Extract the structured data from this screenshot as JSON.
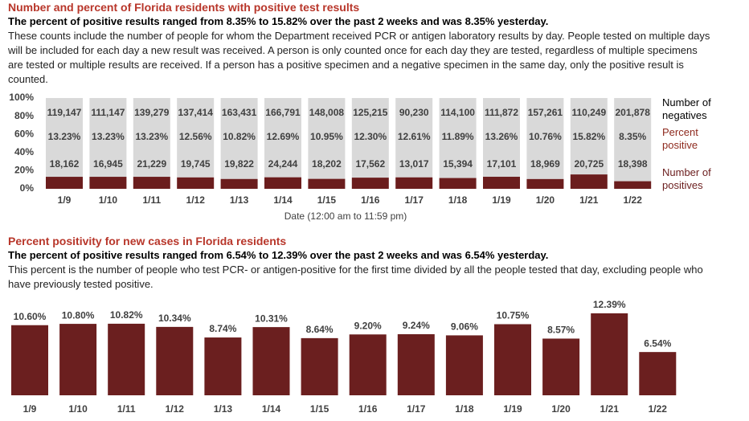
{
  "chart_data": [
    {
      "type": "stacked_percent_bar",
      "title": "Number and percent of Florida residents with positive test results",
      "subtitle": "The percent of positive results ranged from 8.35% to 15.82% over the past 2 weeks and was 8.35% yesterday.",
      "description": "These counts include the number of people for whom the Department received PCR or antigen laboratory results by day. People tested on multiple days will be included for each day a new result was received. A person is only counted once for each day they are tested, regardless of multiple specimens are tested or multiple results are received. If a person has a positive specimen and a negative specimen in the same day, only the positive result is counted.",
      "xlabel": "Date (12:00 am to 11:59 pm)",
      "categories": [
        "1/9",
        "1/10",
        "1/11",
        "1/12",
        "1/13",
        "1/14",
        "1/15",
        "1/16",
        "1/17",
        "1/18",
        "1/19",
        "1/20",
        "1/21",
        "1/22"
      ],
      "series": [
        {
          "name": "Number of negatives",
          "color": "#d9d9d9",
          "values": [
            119147,
            111147,
            139279,
            137414,
            163431,
            166791,
            148008,
            125215,
            90230,
            114100,
            111872,
            157261,
            110249,
            201878
          ],
          "value_labels": [
            "119,147",
            "111,147",
            "139,279",
            "137,414",
            "163,431",
            "166,791",
            "148,008",
            "125,215",
            "90,230",
            "114,100",
            "111,872",
            "157,261",
            "110,249",
            "201,878"
          ]
        },
        {
          "name": "Percent positive",
          "color": "#8e2a1e",
          "values": [
            13.23,
            13.23,
            13.23,
            12.56,
            10.82,
            12.69,
            10.95,
            12.3,
            12.61,
            11.89,
            13.26,
            10.76,
            15.82,
            8.35
          ],
          "value_labels": [
            "13.23%",
            "13.23%",
            "13.23%",
            "12.56%",
            "10.82%",
            "12.69%",
            "10.95%",
            "12.30%",
            "12.61%",
            "11.89%",
            "13.26%",
            "10.76%",
            "15.82%",
            "8.35%"
          ]
        },
        {
          "name": "Number of positives",
          "color": "#6b1d1d",
          "values": [
            18162,
            16945,
            21229,
            19745,
            19822,
            24244,
            18202,
            17562,
            13017,
            15394,
            17101,
            18969,
            20725,
            18398
          ],
          "value_labels": [
            "18,162",
            "16,945",
            "21,229",
            "19,745",
            "19,822",
            "24,244",
            "18,202",
            "17,562",
            "13,017",
            "15,394",
            "17,101",
            "18,969",
            "20,725",
            "18,398"
          ]
        }
      ],
      "ylim": [
        0,
        100
      ],
      "yticks": [
        {
          "value": 0,
          "label": "0%"
        },
        {
          "value": 20,
          "label": "20%"
        },
        {
          "value": 40,
          "label": "40%"
        },
        {
          "value": 60,
          "label": "60%"
        },
        {
          "value": 80,
          "label": "80%"
        },
        {
          "value": 100,
          "label": "100%"
        }
      ]
    },
    {
      "type": "bar",
      "title": "Percent positivity for new cases in Florida residents",
      "subtitle": "The percent of positive results ranged from 6.54% to 12.39% over the past 2 weeks and was 6.54% yesterday.",
      "description": "This percent is the number of people who test PCR- or antigen-positive for the first time divided by all the people tested that day, excluding people who have previously tested positive.",
      "categories": [
        "1/9",
        "1/10",
        "1/11",
        "1/12",
        "1/13",
        "1/14",
        "1/15",
        "1/16",
        "1/17",
        "1/18",
        "1/19",
        "1/20",
        "1/21",
        "1/22"
      ],
      "color": "#6b1f1f",
      "values": [
        10.6,
        10.8,
        10.82,
        10.34,
        8.74,
        10.31,
        8.64,
        9.2,
        9.24,
        9.06,
        10.75,
        8.57,
        12.39,
        6.54
      ],
      "value_labels": [
        "10.60%",
        "10.80%",
        "10.82%",
        "10.34%",
        "8.74%",
        "10.31%",
        "8.64%",
        "9.20%",
        "9.24%",
        "9.06%",
        "10.75%",
        "8.57%",
        "12.39%",
        "6.54%"
      ]
    }
  ]
}
